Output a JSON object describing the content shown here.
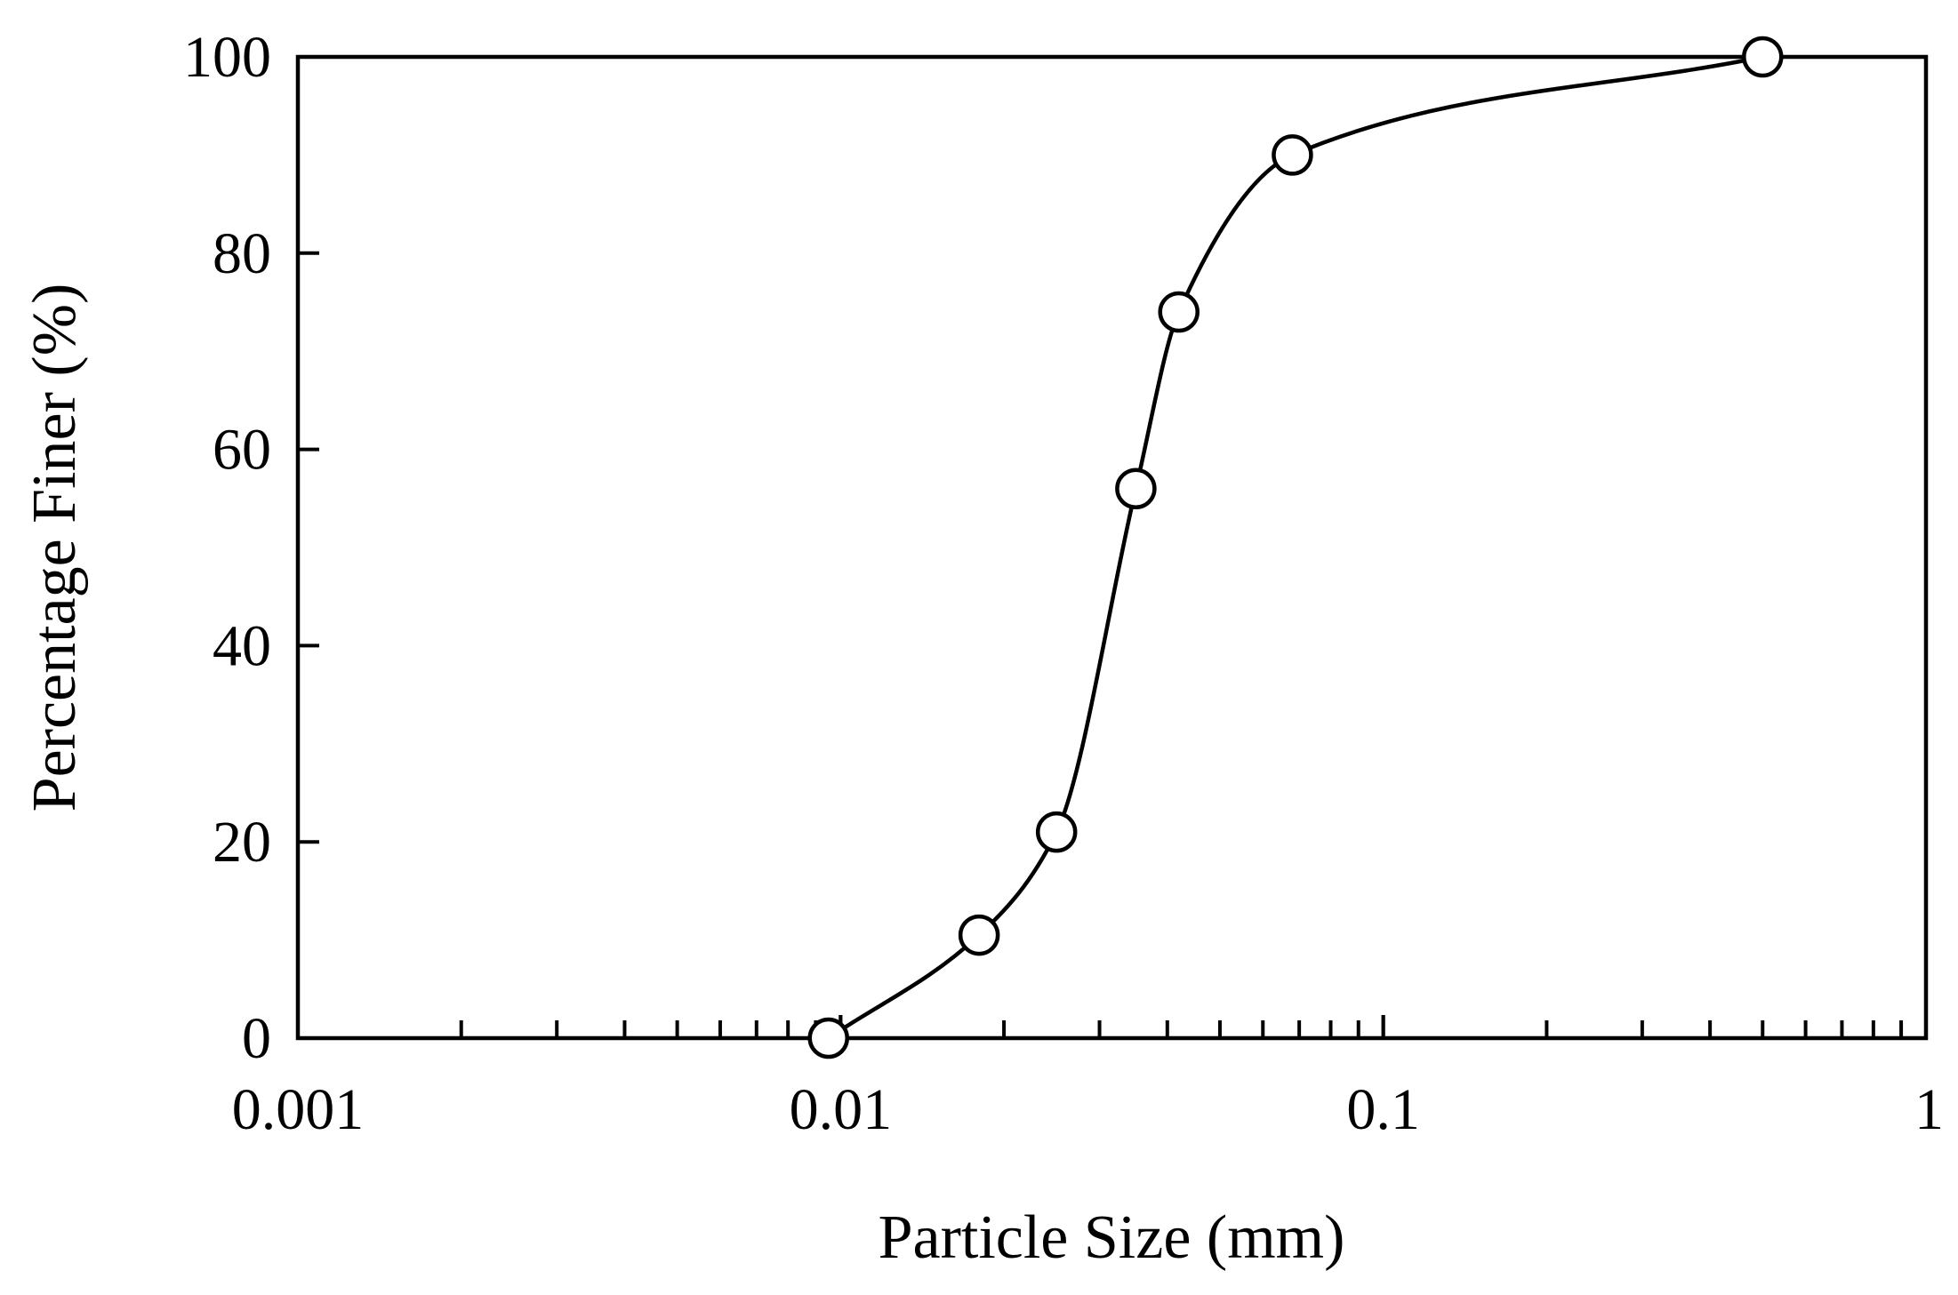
{
  "chart_data": {
    "type": "scatter",
    "title": "",
    "xlabel": "Particle Size (mm)",
    "ylabel": "Percentage Finer (%)",
    "xscale": "log",
    "xlim": [
      0.001,
      1
    ],
    "ylim": [
      0,
      100
    ],
    "x_ticks": [
      0.001,
      0.01,
      0.1,
      1
    ],
    "x_tick_labels": [
      "0.001",
      "0.01",
      "0.1",
      "1"
    ],
    "y_ticks": [
      0,
      20,
      40,
      60,
      80,
      100
    ],
    "y_tick_labels": [
      "0",
      "20",
      "40",
      "60",
      "80",
      "100"
    ],
    "grid": false,
    "legend": "none",
    "series": [
      {
        "marker": "open-circle",
        "line": "smooth",
        "color": "#000000",
        "x": [
          0.0095,
          0.018,
          0.025,
          0.035,
          0.042,
          0.068,
          0.5
        ],
        "y": [
          0,
          10.5,
          21,
          56,
          74,
          90,
          100
        ]
      }
    ]
  }
}
